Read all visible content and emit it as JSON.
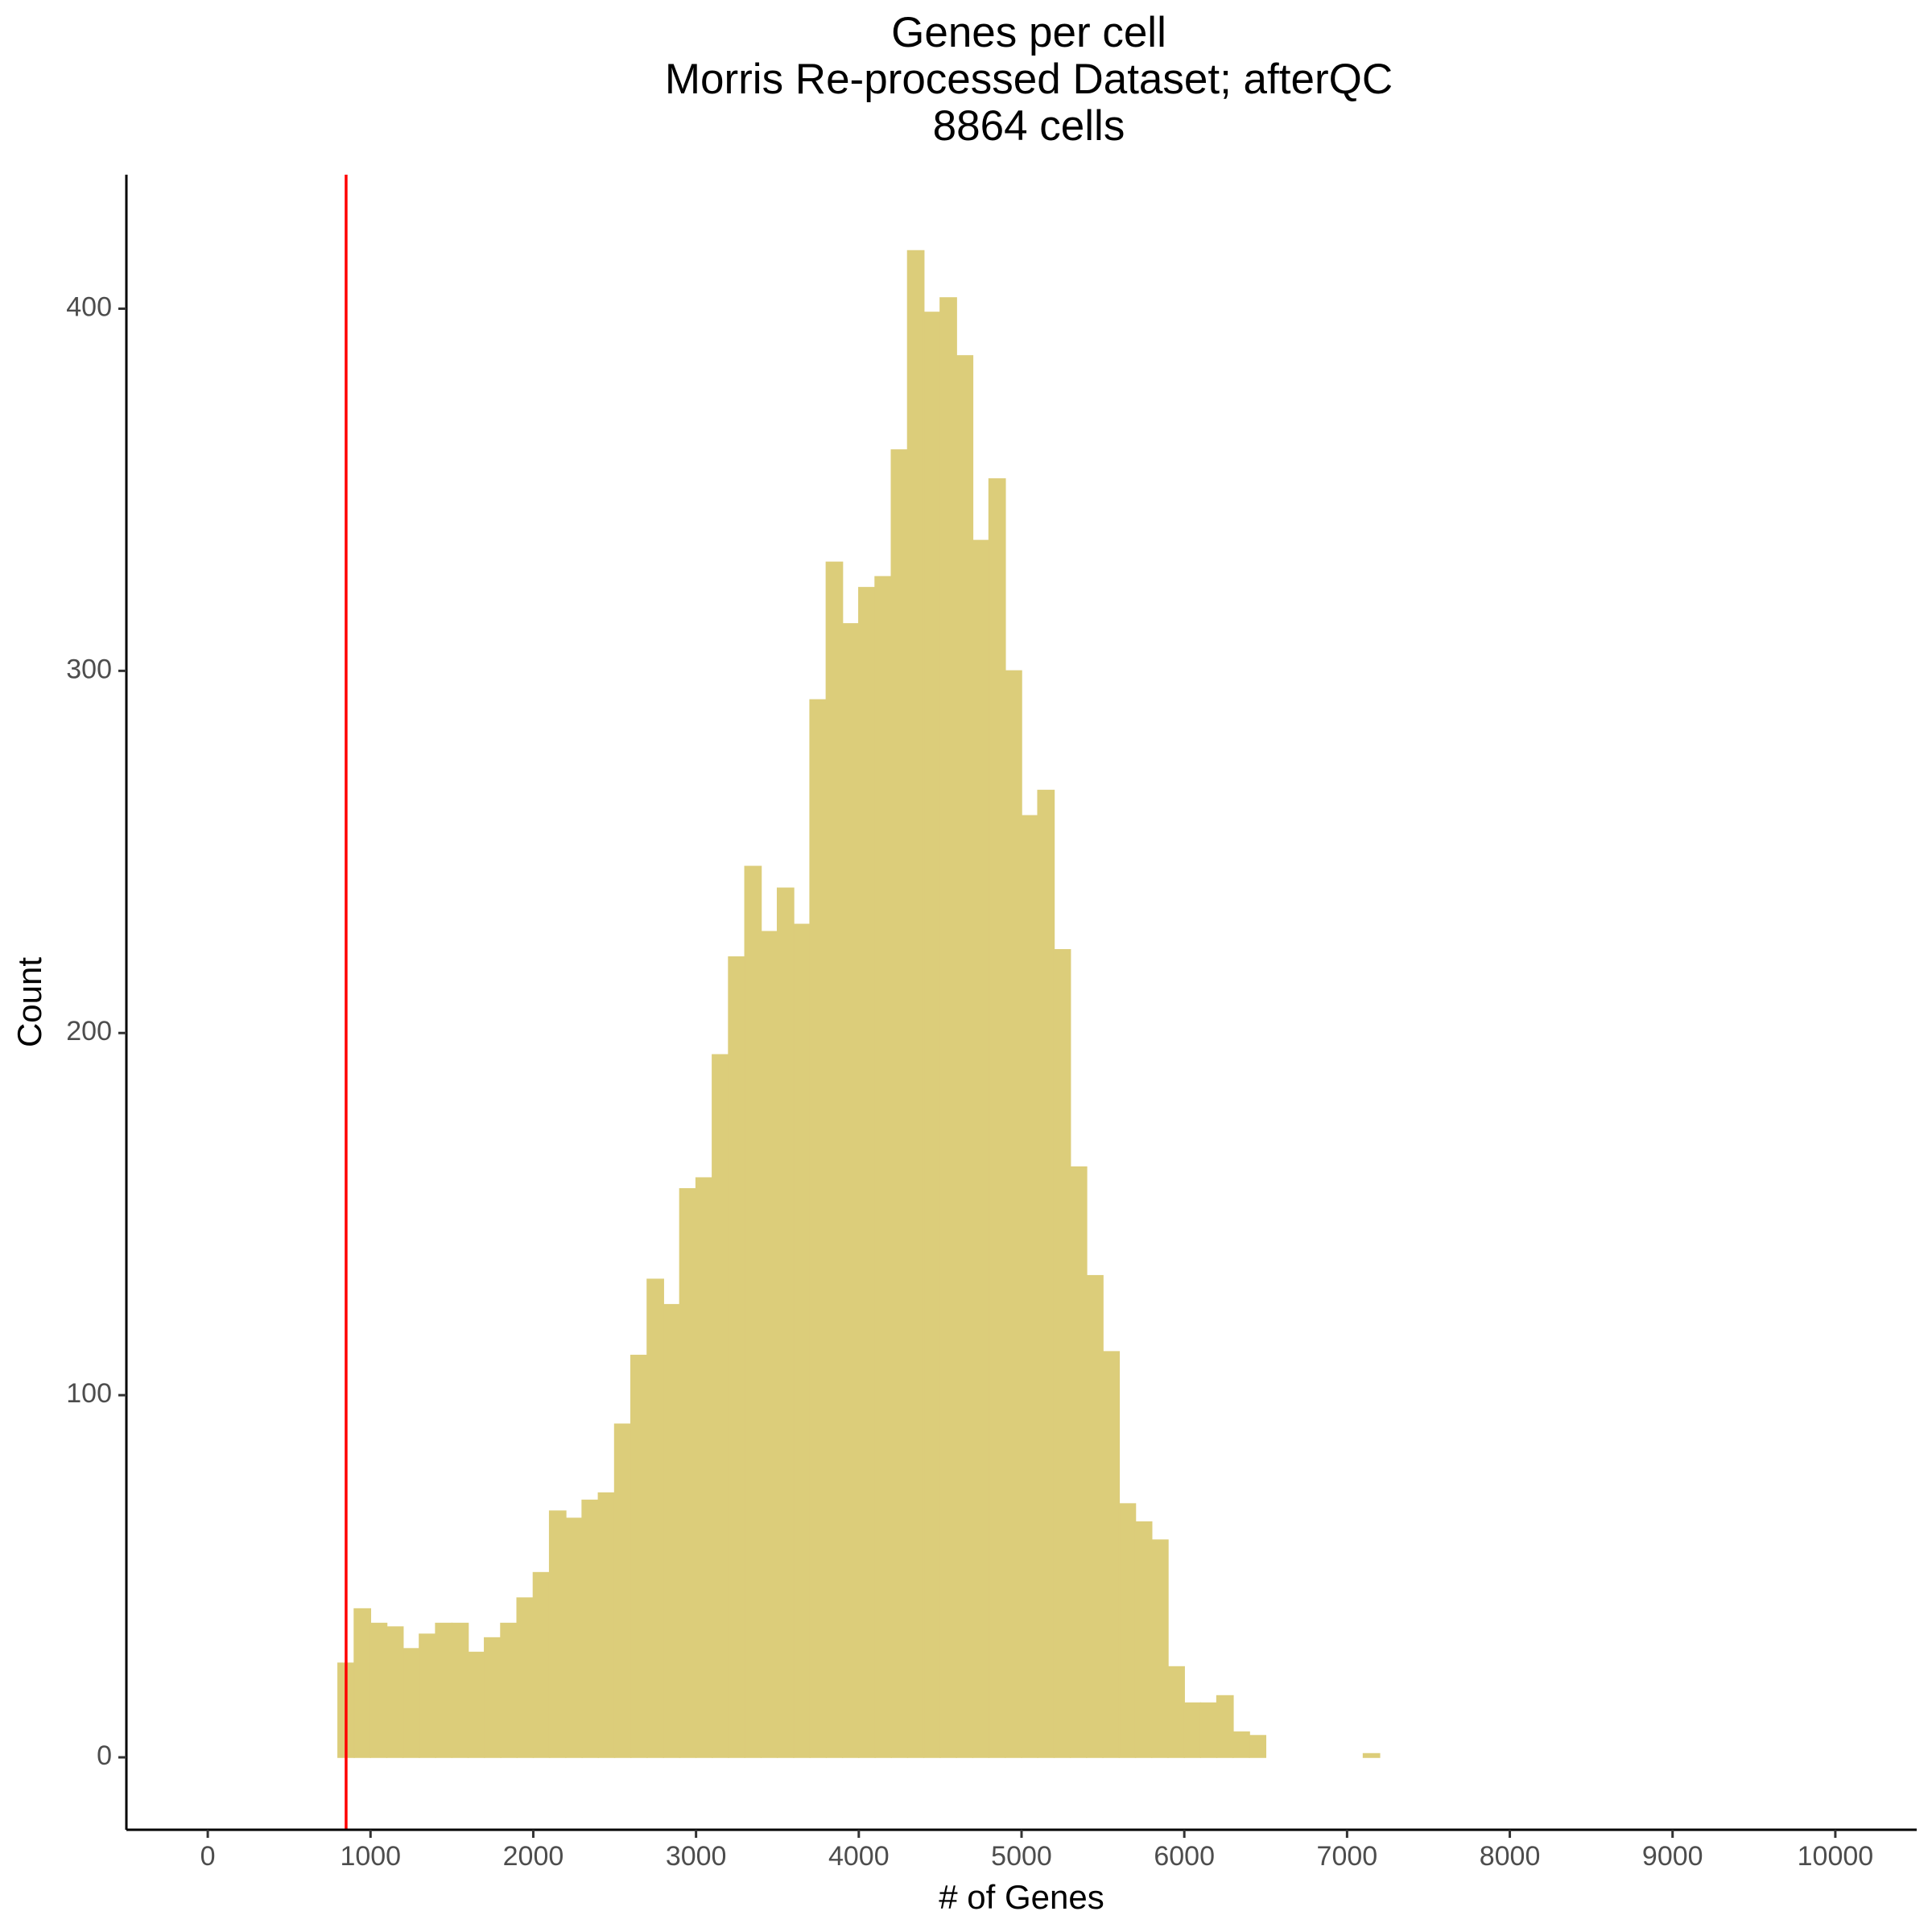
{
  "chart_data": {
    "type": "histogram",
    "title": [
      "Genes per cell",
      "Morris Re-processed Dataset; afterQC",
      "8864 cells"
    ],
    "x_label": "# of Genes",
    "y_label": "Count",
    "color": "#dccd7a",
    "bins": [
      0,
      100,
      200,
      300,
      400,
      500,
      600,
      700,
      800,
      900,
      1000,
      1100,
      1200,
      1300,
      1400,
      1500,
      1600,
      1700,
      1800,
      1900,
      2000,
      2100,
      2200,
      2300,
      2400,
      2500,
      2600,
      2700,
      2800,
      2900,
      3000,
      3100,
      3200,
      3300,
      3400,
      3500,
      3600,
      3700,
      3800,
      3900,
      4000,
      4100,
      4200,
      4300,
      4400,
      4500,
      4600,
      4700,
      4800,
      4900,
      5000,
      5100,
      5200,
      5300,
      5400,
      5500,
      5600,
      5700,
      5800,
      5900,
      6000,
      6100,
      6200,
      6300,
      6400,
      6500,
      6600,
      6700,
      6800,
      6900,
      7000,
      7100,
      7200,
      7300,
      7400,
      7500,
      7600,
      7700,
      7800,
      7900,
      8000,
      8100,
      8200,
      8300,
      8400,
      8500,
      8600,
      8700,
      8800,
      8900,
      9000,
      9100,
      9200,
      9300,
      9400,
      9500,
      9600,
      9700,
      9800,
      9900,
      10000
    ],
    "counts": [
      0,
      0,
      0,
      0,
      0,
      0,
      0,
      0,
      26,
      41,
      37,
      36,
      30,
      34,
      37,
      37,
      29,
      33,
      37,
      44,
      51,
      68,
      66,
      71,
      73,
      92,
      111,
      132,
      125,
      157,
      160,
      194,
      221,
      246,
      228,
      240,
      230,
      292,
      330,
      313,
      323,
      326,
      361,
      416,
      399,
      403,
      387,
      336,
      353,
      300,
      260,
      267,
      223,
      163,
      133,
      112,
      70,
      65,
      60,
      25,
      15,
      15,
      17,
      7,
      6,
      0,
      0,
      0,
      0,
      0,
      0,
      1,
      0,
      0,
      0,
      0,
      0,
      0,
      0,
      0,
      0,
      0,
      0,
      0,
      0,
      0,
      0,
      0,
      0,
      0,
      0,
      0,
      0,
      0,
      0,
      0,
      0,
      0,
      0,
      0
    ],
    "vline": {
      "value": 850,
      "color": "#ff0000"
    },
    "xlim": [
      -500,
      10500
    ],
    "ylim": [
      -20,
      437
    ],
    "xticks": [
      0,
      1000,
      2000,
      3000,
      4000,
      5000,
      6000,
      7000,
      8000,
      9000,
      10000
    ],
    "yticks": [
      0,
      100,
      200,
      300,
      400
    ],
    "grid": false
  }
}
